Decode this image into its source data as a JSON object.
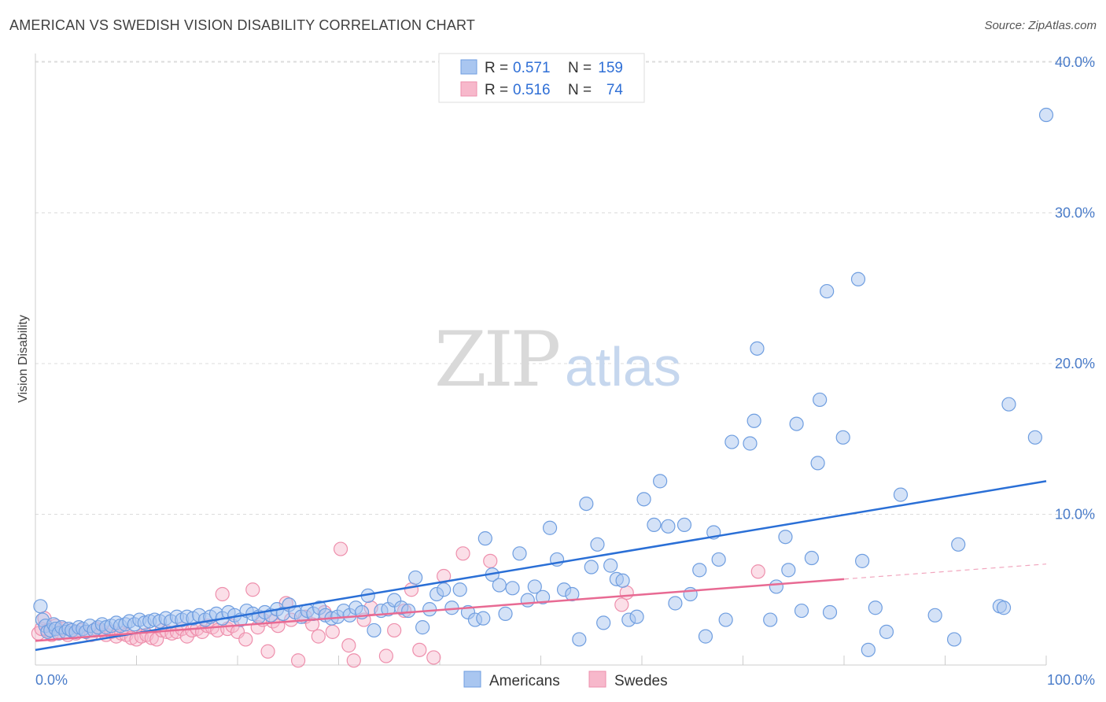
{
  "title": "AMERICAN VS SWEDISH VISION DISABILITY CORRELATION CHART",
  "source": "Source: ZipAtlas.com",
  "watermark": {
    "zip": "ZIP",
    "atlas": "atlas"
  },
  "colors": {
    "americans_fill": "#a9c6f0",
    "americans_stroke": "#6f9ee0",
    "americans_line": "#2a6fd6",
    "swedes_fill": "#f7b8cb",
    "swedes_stroke": "#ee8fac",
    "swedes_line": "#e86a93",
    "tick_text": "#4a7cc9",
    "grid": "#dcdcdc"
  },
  "legend": {
    "rows": [
      {
        "r_label": "R =",
        "r_value": "0.571",
        "n_label": "N =",
        "n_value": "159"
      },
      {
        "r_label": "R =",
        "r_value": "0.516",
        "n_label": "N =",
        "n_value": "74"
      }
    ]
  },
  "bottom_legend": [
    "Americans",
    "Swedes"
  ],
  "chart_data": {
    "type": "scatter",
    "title": "AMERICAN VS SWEDISH VISION DISABILITY CORRELATION CHART",
    "xlabel": "",
    "ylabel": "Vision Disability",
    "xlim": [
      0,
      100
    ],
    "ylim": [
      0,
      42
    ],
    "x_tick_labels": [
      "0.0%",
      "100.0%"
    ],
    "y_ticks": [
      10,
      20,
      30,
      40
    ],
    "y_tick_labels": [
      "10.0%",
      "20.0%",
      "30.0%",
      "40.0%"
    ],
    "grid": true,
    "legend_position": "top-center",
    "series": [
      {
        "name": "Americans",
        "r": 0.571,
        "n": 159,
        "trend": {
          "x": [
            0,
            100
          ],
          "y": [
            1.0,
            12.2
          ]
        },
        "points": [
          [
            0.5,
            3.9
          ],
          [
            0.7,
            3.0
          ],
          [
            1,
            2.6
          ],
          [
            1.2,
            2.2
          ],
          [
            1.5,
            2.3
          ],
          [
            1.8,
            2.7
          ],
          [
            2,
            2.4
          ],
          [
            2.3,
            2.1
          ],
          [
            2.6,
            2.5
          ],
          [
            3,
            2.2
          ],
          [
            3.3,
            2.4
          ],
          [
            3.6,
            2.3
          ],
          [
            4,
            2.2
          ],
          [
            4.3,
            2.5
          ],
          [
            4.7,
            2.4
          ],
          [
            5,
            2.2
          ],
          [
            5.4,
            2.6
          ],
          [
            5.8,
            2.3
          ],
          [
            6.2,
            2.5
          ],
          [
            6.6,
            2.7
          ],
          [
            7,
            2.5
          ],
          [
            7.5,
            2.6
          ],
          [
            8,
            2.8
          ],
          [
            8.4,
            2.6
          ],
          [
            8.9,
            2.7
          ],
          [
            9.3,
            2.9
          ],
          [
            9.8,
            2.7
          ],
          [
            10.3,
            3.0
          ],
          [
            10.8,
            2.8
          ],
          [
            11.3,
            2.9
          ],
          [
            11.8,
            3.0
          ],
          [
            12.3,
            2.9
          ],
          [
            12.9,
            3.1
          ],
          [
            13.4,
            2.9
          ],
          [
            14,
            3.2
          ],
          [
            14.5,
            3.0
          ],
          [
            15,
            3.2
          ],
          [
            15.6,
            3.1
          ],
          [
            16.2,
            3.3
          ],
          [
            16.8,
            3.0
          ],
          [
            17.3,
            3.2
          ],
          [
            17.9,
            3.4
          ],
          [
            18.5,
            3.1
          ],
          [
            19.1,
            3.5
          ],
          [
            19.7,
            3.3
          ],
          [
            20.3,
            3.0
          ],
          [
            20.9,
            3.6
          ],
          [
            21.5,
            3.4
          ],
          [
            22.1,
            3.2
          ],
          [
            22.7,
            3.5
          ],
          [
            23.3,
            3.3
          ],
          [
            23.9,
            3.7
          ],
          [
            24.5,
            3.4
          ],
          [
            25.1,
            4.0
          ],
          [
            25.7,
            3.5
          ],
          [
            26.3,
            3.2
          ],
          [
            26.9,
            3.6
          ],
          [
            27.5,
            3.4
          ],
          [
            28.1,
            3.8
          ],
          [
            28.7,
            3.3
          ],
          [
            29.3,
            3.1
          ],
          [
            29.9,
            3.2
          ],
          [
            30.5,
            3.6
          ],
          [
            31.1,
            3.3
          ],
          [
            31.7,
            3.8
          ],
          [
            32.3,
            3.5
          ],
          [
            32.9,
            4.6
          ],
          [
            33.5,
            2.3
          ],
          [
            34.2,
            3.6
          ],
          [
            34.9,
            3.7
          ],
          [
            35.5,
            4.3
          ],
          [
            36.2,
            3.8
          ],
          [
            36.9,
            3.6
          ],
          [
            37.6,
            5.8
          ],
          [
            38.3,
            2.5
          ],
          [
            39,
            3.7
          ],
          [
            39.7,
            4.7
          ],
          [
            40.4,
            5.0
          ],
          [
            41.2,
            3.8
          ],
          [
            42,
            5.0
          ],
          [
            42.8,
            3.5
          ],
          [
            43.5,
            3.0
          ],
          [
            44.3,
            3.1
          ],
          [
            44.5,
            8.4
          ],
          [
            45.2,
            6.0
          ],
          [
            45.9,
            5.3
          ],
          [
            46.5,
            3.4
          ],
          [
            47.2,
            5.1
          ],
          [
            47.9,
            7.4
          ],
          [
            48.7,
            4.3
          ],
          [
            49.4,
            5.2
          ],
          [
            50.2,
            4.5
          ],
          [
            50.9,
            9.1
          ],
          [
            51.6,
            7.0
          ],
          [
            52.3,
            5.0
          ],
          [
            53.1,
            4.7
          ],
          [
            53.8,
            1.7
          ],
          [
            54.5,
            10.7
          ],
          [
            55,
            6.5
          ],
          [
            55.6,
            8.0
          ],
          [
            56.2,
            2.8
          ],
          [
            56.9,
            6.6
          ],
          [
            57.5,
            5.7
          ],
          [
            58.1,
            5.6
          ],
          [
            58.7,
            3.0
          ],
          [
            59.5,
            3.2
          ],
          [
            60.2,
            11.0
          ],
          [
            61.2,
            9.3
          ],
          [
            61.8,
            12.2
          ],
          [
            62.6,
            9.2
          ],
          [
            63.3,
            4.1
          ],
          [
            64.2,
            9.3
          ],
          [
            64.8,
            4.7
          ],
          [
            65.7,
            6.3
          ],
          [
            66.3,
            1.9
          ],
          [
            67.1,
            8.8
          ],
          [
            67.6,
            7.0
          ],
          [
            68.3,
            3.0
          ],
          [
            68.9,
            14.8
          ],
          [
            70.7,
            14.7
          ],
          [
            71.1,
            16.2
          ],
          [
            71.4,
            21.0
          ],
          [
            72.7,
            3.0
          ],
          [
            73.3,
            5.2
          ],
          [
            74.2,
            8.5
          ],
          [
            74.5,
            6.3
          ],
          [
            75.3,
            16.0
          ],
          [
            75.8,
            3.6
          ],
          [
            76.8,
            7.1
          ],
          [
            77.4,
            13.4
          ],
          [
            77.6,
            17.6
          ],
          [
            78.3,
            24.8
          ],
          [
            78.6,
            3.5
          ],
          [
            79.9,
            15.1
          ],
          [
            81.4,
            25.6
          ],
          [
            81.8,
            6.9
          ],
          [
            82.4,
            1.0
          ],
          [
            83.1,
            3.8
          ],
          [
            84.2,
            2.2
          ],
          [
            85.6,
            11.3
          ],
          [
            89,
            3.3
          ],
          [
            90.9,
            1.7
          ],
          [
            91.3,
            8.0
          ],
          [
            95.4,
            3.9
          ],
          [
            95.8,
            3.8
          ],
          [
            96.3,
            17.3
          ],
          [
            98.9,
            15.1
          ],
          [
            100,
            36.5
          ]
        ]
      },
      {
        "name": "Swedes",
        "r": 0.516,
        "n": 74,
        "trend": {
          "x": [
            0,
            80
          ],
          "y": [
            1.6,
            5.7
          ]
        },
        "trend_extension": {
          "x": [
            80,
            100
          ],
          "y": [
            5.7,
            6.7
          ]
        },
        "points": [
          [
            0.3,
            2.1
          ],
          [
            0.6,
            2.4
          ],
          [
            0.9,
            3.1
          ],
          [
            1.2,
            2.3
          ],
          [
            1.6,
            2.0
          ],
          [
            2,
            2.6
          ],
          [
            2.4,
            2.2
          ],
          [
            2.8,
            2.4
          ],
          [
            3.2,
            2.0
          ],
          [
            3.6,
            2.3
          ],
          [
            4,
            2.1
          ],
          [
            4.5,
            2.3
          ],
          [
            5,
            2.2
          ],
          [
            5.5,
            2.0
          ],
          [
            6,
            2.4
          ],
          [
            6.5,
            2.3
          ],
          [
            7,
            2.0
          ],
          [
            7.5,
            2.2
          ],
          [
            8,
            1.9
          ],
          [
            8.5,
            2.1
          ],
          [
            9,
            2.0
          ],
          [
            9.5,
            1.8
          ],
          [
            10,
            1.7
          ],
          [
            10.5,
            1.9
          ],
          [
            11,
            2.0
          ],
          [
            11.5,
            1.8
          ],
          [
            12,
            1.7
          ],
          [
            12.5,
            2.3
          ],
          [
            13,
            2.2
          ],
          [
            13.5,
            2.1
          ],
          [
            14,
            2.2
          ],
          [
            14.5,
            2.4
          ],
          [
            15,
            1.9
          ],
          [
            15.5,
            2.3
          ],
          [
            16,
            2.4
          ],
          [
            16.5,
            2.2
          ],
          [
            17,
            2.6
          ],
          [
            17.5,
            2.5
          ],
          [
            18,
            2.3
          ],
          [
            18.5,
            4.7
          ],
          [
            19,
            2.4
          ],
          [
            19.5,
            2.6
          ],
          [
            20,
            2.2
          ],
          [
            20.8,
            1.7
          ],
          [
            21.5,
            5.0
          ],
          [
            22,
            2.5
          ],
          [
            22.5,
            3.0
          ],
          [
            23,
            0.9
          ],
          [
            23.5,
            2.9
          ],
          [
            24,
            2.6
          ],
          [
            24.8,
            4.1
          ],
          [
            25.3,
            3.0
          ],
          [
            26,
            0.3
          ],
          [
            26.7,
            3.2
          ],
          [
            27.4,
            2.7
          ],
          [
            28,
            1.9
          ],
          [
            28.6,
            3.5
          ],
          [
            29.4,
            2.2
          ],
          [
            30.2,
            7.7
          ],
          [
            31,
            1.3
          ],
          [
            31.5,
            0.3
          ],
          [
            32.5,
            3.0
          ],
          [
            33.2,
            3.8
          ],
          [
            34.7,
            0.6
          ],
          [
            35.5,
            2.3
          ],
          [
            36.5,
            3.6
          ],
          [
            37.2,
            5.0
          ],
          [
            38,
            1.0
          ],
          [
            39.4,
            0.5
          ],
          [
            40.4,
            5.9
          ],
          [
            42.3,
            7.4
          ],
          [
            45,
            6.9
          ],
          [
            58,
            4.0
          ],
          [
            58.5,
            4.8
          ],
          [
            71.5,
            6.2
          ]
        ]
      }
    ]
  }
}
